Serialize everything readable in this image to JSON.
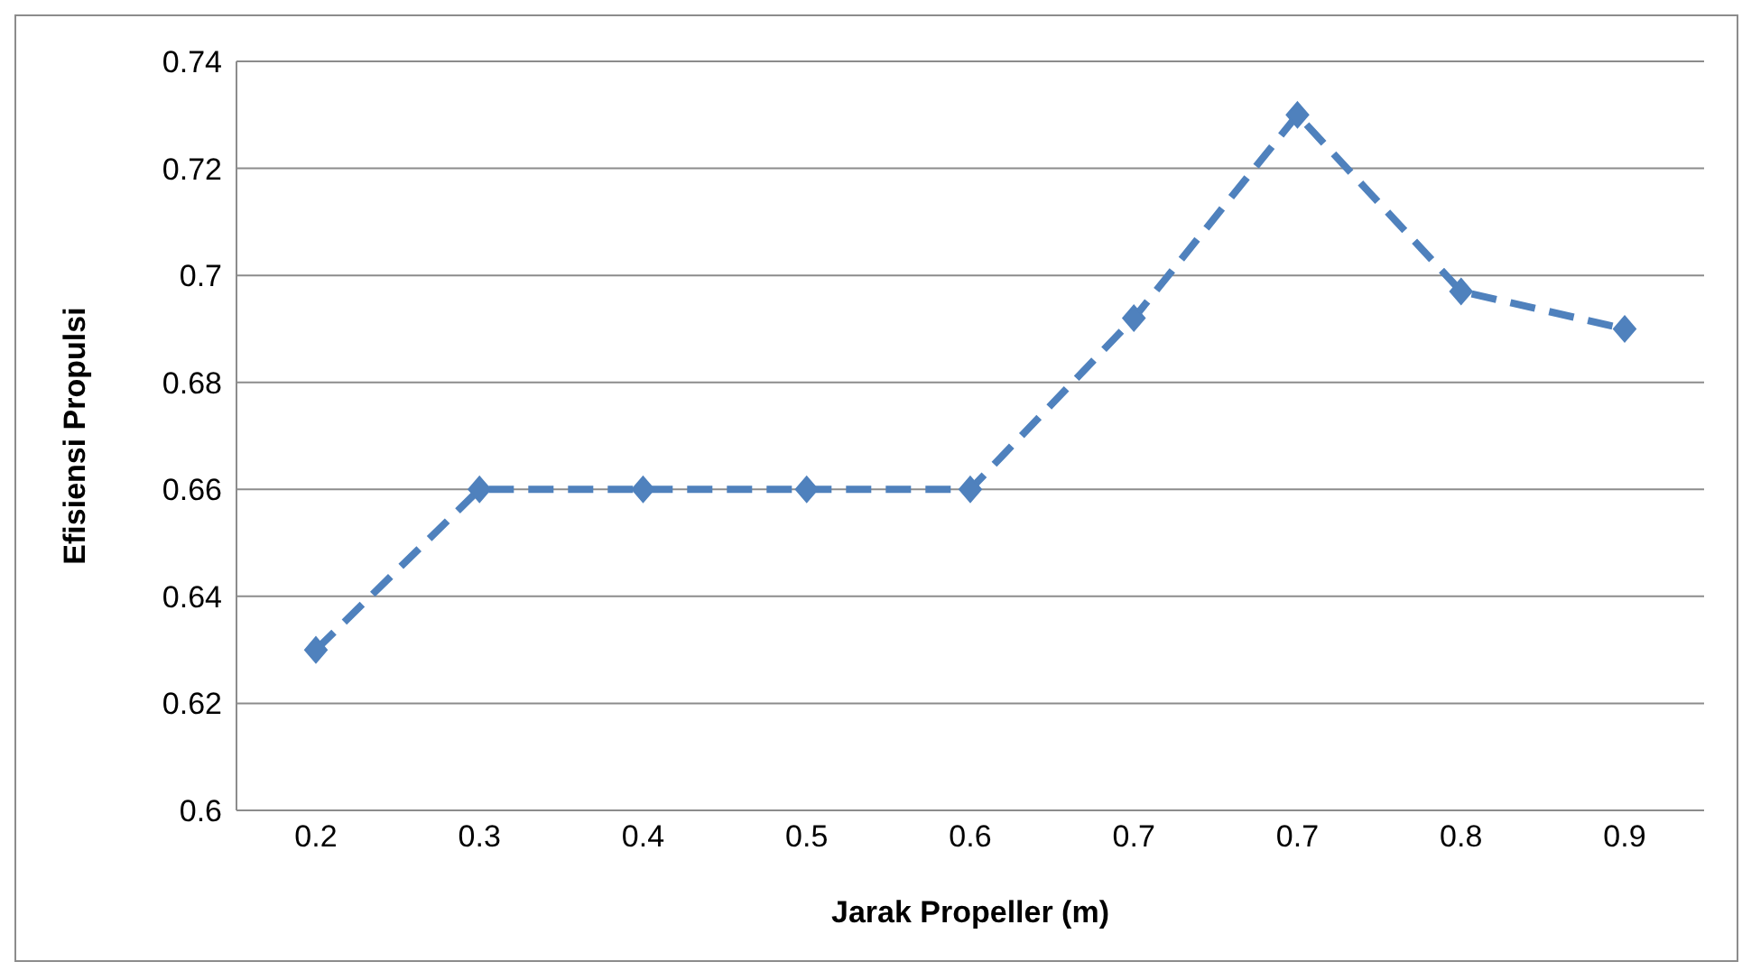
{
  "chart_data": {
    "type": "line",
    "xlabel": "Jarak Propeller (m)",
    "ylabel": "Efisiensi Propulsi",
    "categories": [
      "0.2",
      "0.3",
      "0.4",
      "0.5",
      "0.6",
      "0.7",
      "0.7",
      "0.8",
      "0.9"
    ],
    "series": [
      {
        "color": "#4f81bd",
        "values": [
          0.63,
          0.66,
          0.66,
          0.66,
          0.66,
          0.692,
          0.73,
          0.697,
          0.69
        ]
      }
    ],
    "ylim": [
      0.6,
      0.74
    ],
    "yticks": [
      0.6,
      0.62,
      0.64,
      0.66,
      0.68,
      0.7,
      0.72,
      0.74
    ],
    "grid": "y",
    "legend": false,
    "marker": "diamond",
    "line_style": "dashed"
  }
}
